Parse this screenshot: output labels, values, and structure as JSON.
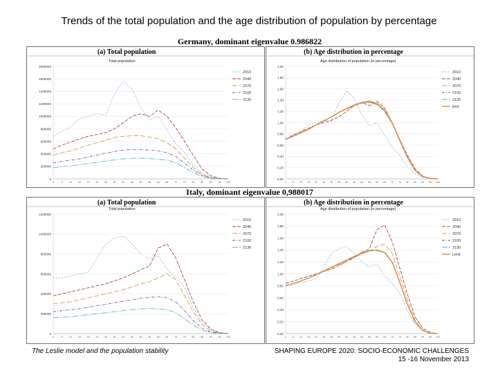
{
  "slide": {
    "title": "Trends of the total population and the age distribution of population by percentage",
    "footer_left": "The Leslie model and the population stability",
    "footer_right_line1": "SHAPING EUROPE 2020: SOCIO-ECONOMIC CHALLENGES",
    "footer_right_line2": "15 -16 November 2013"
  },
  "colors": {
    "2010": "#8fb4e0",
    "2040": "#a8423f",
    "2070": "#c9a043",
    "2100": "#6d5296",
    "2130": "#5db2c9",
    "limit": "#e2893a"
  },
  "chart_data": [
    {
      "type": "line",
      "country_title": "Germany, dominant eigenvalue 0.986822",
      "panel_title": "(a)   Total population",
      "inner_title": "Total population",
      "xlabel": "",
      "ylabel": "",
      "x": [
        0,
        5,
        10,
        15,
        20,
        25,
        30,
        35,
        40,
        45,
        50,
        55,
        60,
        65,
        70,
        75,
        80,
        85,
        90,
        95,
        100
      ],
      "ylim": [
        0,
        1800000
      ],
      "yticks": [
        "0",
        "200000",
        "400000",
        "600000",
        "800000",
        "1000000",
        "1200000",
        "1400000",
        "1600000",
        "1800000"
      ],
      "legend_position": "right",
      "series": [
        {
          "name": "2010",
          "color_key": "2010",
          "dash": "2,2",
          "values": [
            680000,
            760000,
            830000,
            960000,
            1000000,
            1040000,
            1020000,
            1360000,
            1560000,
            1440000,
            1140000,
            940000,
            1000000,
            780000,
            560000,
            420000,
            220000,
            90000,
            30000,
            8000,
            0
          ]
        },
        {
          "name": "2040",
          "color_key": "2040",
          "dash": "5,2",
          "values": [
            480000,
            540000,
            590000,
            640000,
            680000,
            710000,
            740000,
            800000,
            900000,
            1000000,
            1040000,
            1000000,
            1100000,
            1000000,
            820000,
            600000,
            380000,
            160000,
            50000,
            10000,
            0
          ]
        },
        {
          "name": "2070",
          "color_key": "2070",
          "dash": "7,3",
          "values": [
            380000,
            420000,
            450000,
            490000,
            540000,
            580000,
            620000,
            660000,
            680000,
            690000,
            690000,
            670000,
            640000,
            580000,
            480000,
            330000,
            180000,
            70000,
            20000,
            5000,
            0
          ]
        },
        {
          "name": "2100",
          "color_key": "2100",
          "dash": "4,2,1,2",
          "values": [
            260000,
            280000,
            300000,
            320000,
            350000,
            380000,
            410000,
            440000,
            460000,
            470000,
            470000,
            460000,
            450000,
            420000,
            360000,
            250000,
            140000,
            55000,
            15000,
            4000,
            0
          ]
        },
        {
          "name": "2130",
          "color_key": "2130",
          "dash": "8,2,2,2",
          "values": [
            180000,
            195000,
            210000,
            225000,
            245000,
            265000,
            285000,
            305000,
            320000,
            330000,
            330000,
            325000,
            315000,
            300000,
            260000,
            180000,
            100000,
            40000,
            10000,
            3000,
            0
          ]
        }
      ]
    },
    {
      "type": "line",
      "country_title": "Germany, dominant eigenvalue 0.986822",
      "panel_title": "(b)   Age distribution in percentage",
      "inner_title": "Age distribution of population (in percentage)",
      "xlabel": "",
      "ylabel": "",
      "x": [
        0,
        5,
        10,
        15,
        20,
        25,
        30,
        35,
        40,
        45,
        50,
        55,
        60,
        65,
        70,
        75,
        80,
        85,
        90,
        95,
        100
      ],
      "ylim": [
        0,
        2.0
      ],
      "yticks": [
        "0,00",
        "0,20",
        "0,40",
        "0,60",
        "0,80",
        "1,00",
        "1,20",
        "1,40",
        "1,60",
        "1,80",
        "2,00"
      ],
      "legend_position": "right",
      "series": [
        {
          "name": "2010",
          "color_key": "2010",
          "dash": "2,2",
          "values": [
            0.72,
            0.78,
            0.84,
            0.96,
            1.0,
            1.04,
            1.02,
            1.36,
            1.56,
            1.44,
            1.14,
            0.94,
            1.0,
            0.78,
            0.56,
            0.42,
            0.22,
            0.09,
            0.03,
            0.01,
            0
          ]
        },
        {
          "name": "2040",
          "color_key": "2040",
          "dash": "5,2",
          "values": [
            0.7,
            0.78,
            0.84,
            0.9,
            0.96,
            1.0,
            1.04,
            1.1,
            1.2,
            1.3,
            1.36,
            1.3,
            1.38,
            1.26,
            1.0,
            0.7,
            0.42,
            0.18,
            0.05,
            0.01,
            0
          ]
        },
        {
          "name": "2070",
          "color_key": "2070",
          "dash": "7,3",
          "values": [
            0.7,
            0.76,
            0.82,
            0.88,
            0.96,
            1.03,
            1.1,
            1.18,
            1.24,
            1.3,
            1.34,
            1.36,
            1.32,
            1.2,
            0.98,
            0.68,
            0.38,
            0.15,
            0.04,
            0.01,
            0
          ]
        },
        {
          "name": "2100",
          "color_key": "2100",
          "dash": "4,2,1,2",
          "values": [
            0.7,
            0.76,
            0.82,
            0.88,
            0.96,
            1.03,
            1.1,
            1.18,
            1.25,
            1.31,
            1.35,
            1.37,
            1.33,
            1.21,
            0.99,
            0.68,
            0.38,
            0.15,
            0.04,
            0.01,
            0
          ]
        },
        {
          "name": "2130",
          "color_key": "2130",
          "dash": "8,2,2,2",
          "values": [
            0.7,
            0.76,
            0.82,
            0.88,
            0.96,
            1.03,
            1.1,
            1.18,
            1.25,
            1.31,
            1.35,
            1.37,
            1.33,
            1.21,
            0.99,
            0.68,
            0.38,
            0.15,
            0.04,
            0.01,
            0
          ]
        },
        {
          "name": "limit",
          "color_key": "limit",
          "dash": "",
          "values": [
            0.7,
            0.76,
            0.82,
            0.88,
            0.96,
            1.03,
            1.1,
            1.18,
            1.25,
            1.31,
            1.36,
            1.38,
            1.34,
            1.22,
            1.0,
            0.69,
            0.39,
            0.15,
            0.04,
            0.01,
            0
          ]
        }
      ]
    },
    {
      "type": "line",
      "country_title": "Italy, dominant eigenvalue 0,988017",
      "panel_title": "(a)   Total population",
      "inner_title": "Total  population",
      "xlabel": "",
      "ylabel": "",
      "x": [
        0,
        5,
        10,
        15,
        20,
        25,
        30,
        35,
        40,
        45,
        50,
        55,
        60,
        65,
        70,
        75,
        80,
        85,
        90,
        95,
        100
      ],
      "ylim": [
        0,
        1200000
      ],
      "yticks": [
        "0",
        "200000",
        "400000",
        "600000",
        "800000",
        "1000000",
        "1200000"
      ],
      "legend_position": "right",
      "series": [
        {
          "name": "2010",
          "color_key": "2010",
          "dash": "2,2",
          "values": [
            560000,
            560000,
            580000,
            600000,
            620000,
            760000,
            900000,
            960000,
            980000,
            900000,
            800000,
            750000,
            780000,
            650000,
            560000,
            460000,
            260000,
            110000,
            40000,
            10000,
            0
          ]
        },
        {
          "name": "2040",
          "color_key": "2040",
          "dash": "5,2",
          "values": [
            380000,
            400000,
            420000,
            440000,
            460000,
            480000,
            500000,
            530000,
            560000,
            600000,
            640000,
            680000,
            860000,
            900000,
            760000,
            540000,
            320000,
            140000,
            45000,
            10000,
            0
          ]
        },
        {
          "name": "2070",
          "color_key": "2070",
          "dash": "7,3",
          "values": [
            300000,
            310000,
            320000,
            340000,
            360000,
            380000,
            400000,
            420000,
            440000,
            470000,
            500000,
            520000,
            560000,
            600000,
            540000,
            380000,
            220000,
            90000,
            25000,
            6000,
            0
          ]
        },
        {
          "name": "2100",
          "color_key": "2100",
          "dash": "4,2,1,2",
          "values": [
            220000,
            230000,
            240000,
            250000,
            265000,
            280000,
            295000,
            310000,
            325000,
            340000,
            355000,
            365000,
            370000,
            360000,
            320000,
            230000,
            130000,
            55000,
            15000,
            4000,
            0
          ]
        },
        {
          "name": "2130",
          "color_key": "2130",
          "dash": "8,2,2,2",
          "values": [
            160000,
            165000,
            170000,
            180000,
            190000,
            200000,
            210000,
            220000,
            230000,
            240000,
            248000,
            252000,
            250000,
            240000,
            210000,
            150000,
            85000,
            35000,
            10000,
            2000,
            0
          ]
        }
      ]
    },
    {
      "type": "line",
      "country_title": "Italy, dominant eigenvalue 0,988017",
      "panel_title": "(b)   Age distribution in percentage",
      "inner_title": "Age distribution of population (in percentage)",
      "xlabel": "",
      "ylabel": "",
      "x": [
        0,
        5,
        10,
        15,
        20,
        25,
        30,
        35,
        40,
        45,
        50,
        55,
        60,
        65,
        70,
        75,
        80,
        85,
        90,
        95,
        100
      ],
      "ylim": [
        0,
        2.0
      ],
      "yticks": [
        "0,00",
        "0,20",
        "0,40",
        "0,60",
        "0,80",
        "1,00",
        "1,20",
        "1,40",
        "1,60",
        "1,80",
        "2,00"
      ],
      "legend_position": "right",
      "series": [
        {
          "name": "2010",
          "color_key": "2010",
          "dash": "2,2",
          "values": [
            0.82,
            0.82,
            0.86,
            0.88,
            0.92,
            1.12,
            1.34,
            1.42,
            1.46,
            1.34,
            1.2,
            1.12,
            1.16,
            0.97,
            0.84,
            0.68,
            0.38,
            0.16,
            0.06,
            0.01,
            0
          ]
        },
        {
          "name": "2040",
          "color_key": "2040",
          "dash": "5,2",
          "values": [
            0.84,
            0.88,
            0.92,
            0.96,
            1.0,
            1.04,
            1.08,
            1.14,
            1.2,
            1.28,
            1.36,
            1.42,
            1.74,
            1.82,
            1.54,
            1.1,
            0.66,
            0.28,
            0.09,
            0.02,
            0
          ]
        },
        {
          "name": "2070",
          "color_key": "2070",
          "dash": "7,3",
          "values": [
            0.8,
            0.84,
            0.88,
            0.93,
            0.98,
            1.04,
            1.09,
            1.14,
            1.2,
            1.27,
            1.34,
            1.38,
            1.46,
            1.5,
            1.34,
            0.96,
            0.56,
            0.23,
            0.06,
            0.01,
            0
          ]
        },
        {
          "name": "2100",
          "color_key": "2100",
          "dash": "4,2,1,2",
          "values": [
            0.8,
            0.84,
            0.88,
            0.93,
            0.99,
            1.05,
            1.11,
            1.16,
            1.22,
            1.28,
            1.34,
            1.38,
            1.4,
            1.36,
            1.2,
            0.86,
            0.49,
            0.2,
            0.05,
            0.01,
            0
          ]
        },
        {
          "name": "2130",
          "color_key": "2130",
          "dash": "8,2,2,2",
          "values": [
            0.8,
            0.84,
            0.88,
            0.93,
            0.99,
            1.05,
            1.11,
            1.17,
            1.23,
            1.29,
            1.35,
            1.38,
            1.39,
            1.35,
            1.19,
            0.85,
            0.48,
            0.2,
            0.05,
            0.01,
            0
          ]
        },
        {
          "name": "Limit",
          "color_key": "limit",
          "dash": "",
          "values": [
            0.8,
            0.84,
            0.88,
            0.93,
            0.99,
            1.05,
            1.11,
            1.17,
            1.23,
            1.29,
            1.35,
            1.39,
            1.4,
            1.36,
            1.2,
            0.86,
            0.49,
            0.2,
            0.05,
            0.01,
            0
          ]
        }
      ]
    }
  ]
}
